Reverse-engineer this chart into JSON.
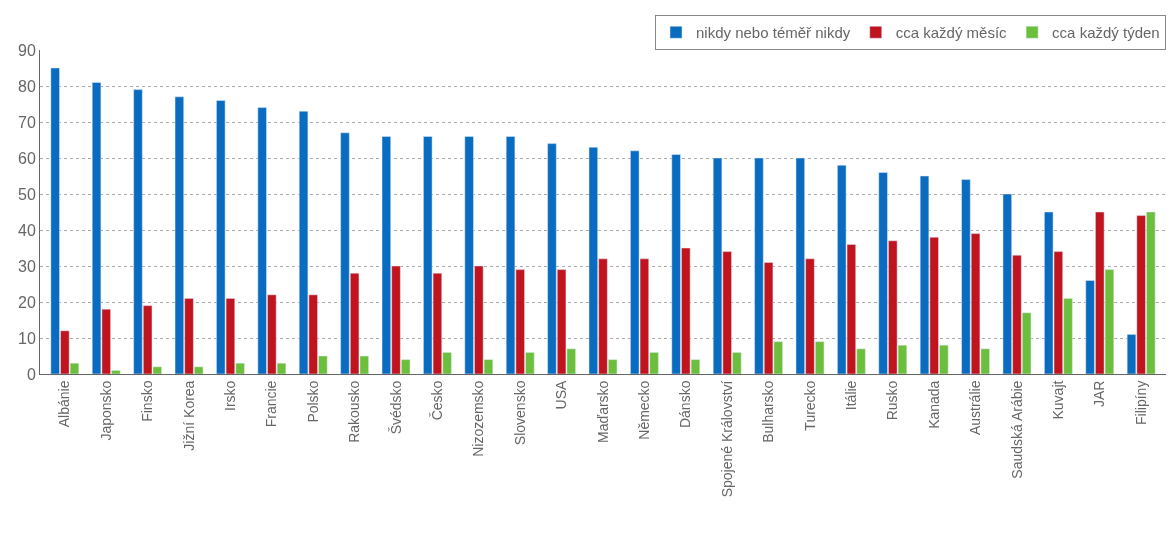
{
  "chart_data": {
    "type": "bar",
    "categories": [
      "Albánie",
      "Japonsko",
      "Finsko",
      "Jižní Korea",
      "Irsko",
      "Francie",
      "Polsko",
      "Rakousko",
      "Švédsko",
      "Česko",
      "Nizozemsko",
      "Slovensko",
      "USA",
      "Maďarsko",
      "Německo",
      "Dánsko",
      "Spojené Království",
      "Bulharsko",
      "Turecko",
      "Itálie",
      "Rusko",
      "Kanada",
      "Austrálie",
      "Saudská Arábie",
      "Kuvajt",
      "JAR",
      "Filipíny"
    ],
    "series": [
      {
        "name": "nikdy nebo téměř nikdy",
        "color": "#0a6cc0",
        "values": [
          85,
          81,
          79,
          77,
          76,
          74,
          73,
          67,
          66,
          66,
          66,
          66,
          64,
          63,
          62,
          61,
          60,
          60,
          60,
          58,
          56,
          55,
          54,
          50,
          45,
          26,
          11
        ]
      },
      {
        "name": "cca každý měsíc",
        "color": "#c0141e",
        "values": [
          12,
          18,
          19,
          21,
          21,
          22,
          22,
          28,
          30,
          28,
          30,
          29,
          29,
          32,
          32,
          35,
          34,
          31,
          32,
          36,
          37,
          38,
          39,
          33,
          34,
          45,
          44
        ]
      },
      {
        "name": "cca každý týden",
        "color": "#6cbf3c",
        "values": [
          3,
          1,
          2,
          2,
          3,
          3,
          5,
          5,
          4,
          6,
          4,
          6,
          7,
          4,
          6,
          4,
          6,
          9,
          9,
          7,
          8,
          8,
          7,
          17,
          21,
          29,
          45
        ]
      }
    ],
    "ylim": [
      0,
      90
    ],
    "yticks": [
      0,
      10,
      20,
      30,
      40,
      50,
      60,
      70,
      80,
      90
    ],
    "grid": "y",
    "legend": "top right"
  }
}
